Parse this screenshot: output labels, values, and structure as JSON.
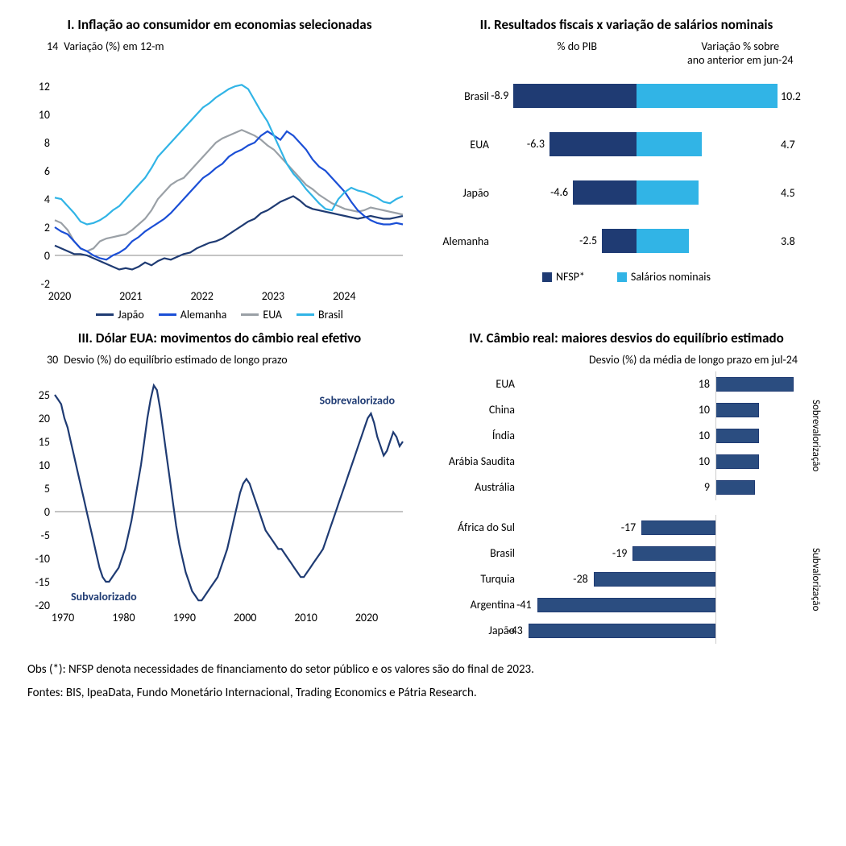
{
  "colors": {
    "japan": "#1f3b73",
    "germany": "#1b4fd6",
    "usa": "#9aa0a6",
    "brazil": "#31b4e6",
    "nfsp": "#1f3b73",
    "salarios": "#31b4e6",
    "bar4_fill": "#2b4d80",
    "bar4_border": "#1f3b73"
  },
  "panel1": {
    "title": "I. Inflação ao consumidor em economias selecionadas",
    "y_label": "Variação (%) em 12-m",
    "ylim": [
      -2,
      14
    ],
    "yticks": [
      -2,
      0,
      2,
      4,
      6,
      8,
      10,
      12,
      14
    ],
    "xticks": [
      "2020",
      "2021",
      "2022",
      "2023",
      "2024"
    ],
    "legend": [
      "Japão",
      "Alemanha",
      "EUA",
      "Brasil"
    ],
    "series": {
      "japan": [
        0.7,
        0.5,
        0.3,
        0.1,
        0.1,
        0.0,
        -0.2,
        -0.4,
        -0.6,
        -0.8,
        -1.0,
        -0.9,
        -1.0,
        -0.8,
        -0.5,
        -0.7,
        -0.4,
        -0.2,
        -0.3,
        -0.1,
        0.1,
        0.2,
        0.5,
        0.7,
        0.9,
        1.0,
        1.2,
        1.5,
        1.8,
        2.1,
        2.4,
        2.6,
        3.0,
        3.2,
        3.5,
        3.8,
        4.0,
        4.2,
        3.9,
        3.5,
        3.3,
        3.2,
        3.1,
        3.0,
        2.9,
        2.8,
        2.7,
        2.6,
        2.7,
        2.8,
        2.7,
        2.6,
        2.6,
        2.7,
        2.8
      ],
      "germany": [
        2.0,
        1.7,
        1.5,
        1.0,
        0.5,
        0.3,
        0.0,
        -0.2,
        -0.3,
        0.0,
        0.2,
        0.5,
        1.0,
        1.3,
        1.7,
        2.0,
        2.3,
        2.6,
        3.0,
        3.5,
        4.0,
        4.5,
        5.0,
        5.5,
        5.8,
        6.2,
        6.5,
        7.0,
        7.3,
        7.5,
        7.8,
        8.0,
        8.5,
        8.8,
        8.5,
        8.2,
        8.8,
        8.5,
        8.0,
        7.5,
        6.8,
        6.3,
        6.0,
        5.5,
        5.0,
        4.5,
        3.8,
        3.2,
        2.8,
        2.5,
        2.3,
        2.2,
        2.2,
        2.3,
        2.2
      ],
      "usa": [
        2.5,
        2.3,
        1.8,
        1.0,
        0.5,
        0.3,
        0.5,
        1.0,
        1.2,
        1.3,
        1.4,
        1.5,
        1.8,
        2.2,
        2.6,
        3.2,
        4.0,
        4.5,
        5.0,
        5.3,
        5.5,
        6.0,
        6.5,
        7.0,
        7.5,
        8.0,
        8.3,
        8.5,
        8.7,
        8.9,
        8.7,
        8.5,
        8.2,
        7.8,
        7.5,
        7.0,
        6.5,
        6.0,
        5.5,
        5.0,
        4.7,
        4.3,
        4.0,
        3.7,
        3.5,
        3.3,
        3.2,
        3.1,
        3.2,
        3.4,
        3.3,
        3.2,
        3.1,
        3.0,
        2.9
      ],
      "brazil": [
        4.1,
        4.0,
        3.5,
        3.0,
        2.4,
        2.2,
        2.3,
        2.5,
        2.8,
        3.2,
        3.5,
        4.0,
        4.5,
        5.0,
        5.5,
        6.2,
        7.0,
        7.5,
        8.0,
        8.5,
        9.0,
        9.5,
        10.0,
        10.5,
        10.8,
        11.2,
        11.5,
        11.8,
        12.0,
        12.1,
        11.8,
        11.0,
        10.2,
        9.5,
        8.5,
        7.5,
        6.5,
        5.8,
        5.3,
        4.7,
        4.2,
        3.7,
        3.3,
        3.2,
        4.0,
        4.5,
        4.8,
        4.6,
        4.5,
        4.3,
        4.1,
        3.8,
        3.7,
        4.0,
        4.2
      ]
    }
  },
  "panel2": {
    "title": "II.  Resultados fiscais x variação de salários nominais",
    "left_head": "% do PIB",
    "right_head": "Variação % sobre\nano anterior em jun-24",
    "legend": [
      "NFSP*",
      "Salários nominais"
    ],
    "max_abs": 10.2,
    "rows": [
      {
        "label": "Brasil",
        "neg": -8.9,
        "pos": 10.2
      },
      {
        "label": "EUA",
        "neg": -6.3,
        "pos": 4.7
      },
      {
        "label": "Japão",
        "neg": -4.6,
        "pos": 4.5
      },
      {
        "label": "Alemanha",
        "neg": -2.5,
        "pos": 3.8
      }
    ]
  },
  "panel3": {
    "title": "III. Dólar EUA: movimentos do câmbio real efetivo",
    "y_label": "Desvio (%) do equilíbrio estimado de longo prazo",
    "ylim": [
      -20,
      30
    ],
    "yticks": [
      -20,
      -15,
      -10,
      -5,
      0,
      5,
      10,
      15,
      20,
      25,
      30
    ],
    "xticks": [
      "1970",
      "1980",
      "1990",
      "2000",
      "2010",
      "2020"
    ],
    "anno_over": "Sobrevalorizado",
    "anno_under": "Subvalorizado",
    "series": [
      25,
      24,
      23,
      20,
      18,
      15,
      12,
      9,
      6,
      3,
      0,
      -3,
      -6,
      -9,
      -12,
      -14,
      -15,
      -15,
      -14,
      -13,
      -12,
      -10,
      -8,
      -5,
      -2,
      2,
      6,
      10,
      15,
      20,
      24,
      27,
      26,
      22,
      17,
      12,
      7,
      2,
      -3,
      -7,
      -10,
      -13,
      -15,
      -17,
      -18,
      -19,
      -19,
      -18,
      -17,
      -16,
      -15,
      -14,
      -12,
      -10,
      -8,
      -5,
      -2,
      1,
      4,
      6,
      7,
      6,
      4,
      2,
      0,
      -2,
      -4,
      -5,
      -6,
      -7,
      -8,
      -8,
      -9,
      -10,
      -11,
      -12,
      -13,
      -14,
      -14,
      -13,
      -12,
      -11,
      -10,
      -9,
      -8,
      -6,
      -4,
      -2,
      0,
      2,
      4,
      6,
      8,
      10,
      12,
      14,
      16,
      18,
      20,
      21,
      19,
      16,
      14,
      12,
      13,
      15,
      17,
      16,
      14,
      15
    ]
  },
  "panel4": {
    "title": "IV. Câmbio real: maiores desvios do equilíbrio estimado",
    "sub": "Desvio (%) da média de longo prazo em jul-24",
    "side_over": "Sobrevalorização",
    "side_under": "Subvalorização",
    "xlim": [
      -45,
      20
    ],
    "over": [
      {
        "label": "EUA",
        "val": 18
      },
      {
        "label": "China",
        "val": 10
      },
      {
        "label": "Índia",
        "val": 10
      },
      {
        "label": "Arábia Saudita",
        "val": 10
      },
      {
        "label": "Austrália",
        "val": 9
      }
    ],
    "under": [
      {
        "label": "África do Sul",
        "val": -17
      },
      {
        "label": "Brasil",
        "val": -19
      },
      {
        "label": "Turquia",
        "val": -28
      },
      {
        "label": "Argentina",
        "val": -41
      },
      {
        "label": "Japão",
        "val": -43
      }
    ]
  },
  "footnotes": {
    "line1": "Obs (*): NFSP denota necessidades de financiamento do setor público e os valores são do final de 2023.",
    "line2": "Fontes: BIS, IpeaData, Fundo Monetário Internacional, Trading Economics e Pátria Research."
  }
}
